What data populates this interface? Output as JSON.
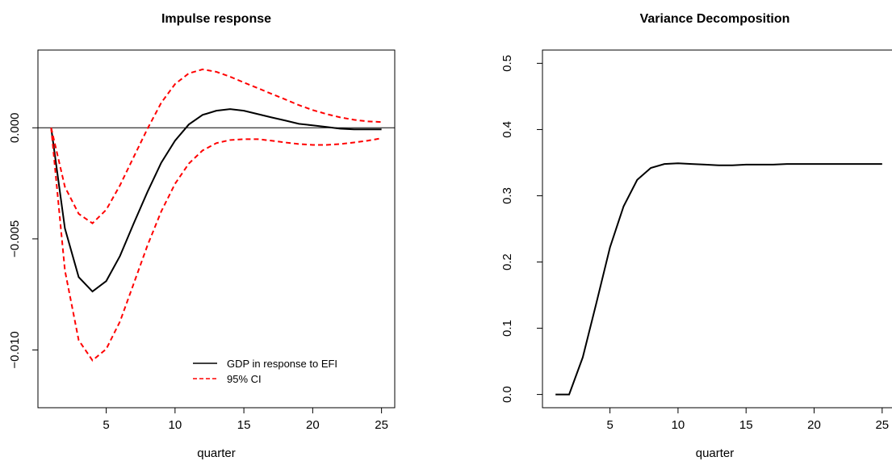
{
  "chart_data": [
    {
      "type": "line",
      "title": "Impulse response",
      "x_label": "quarter",
      "x": [
        1,
        2,
        3,
        4,
        5,
        6,
        7,
        8,
        9,
        10,
        11,
        12,
        13,
        14,
        15,
        16,
        17,
        18,
        19,
        20,
        21,
        22,
        23,
        24,
        25
      ],
      "series": [
        {
          "name": "GDP in response to EFI",
          "color": "#000000",
          "linestyle": "solid",
          "values": [
            0,
            -0.00453,
            -0.00672,
            -0.00737,
            -0.0069,
            -0.00577,
            -0.0043,
            -0.00288,
            -0.00157,
            -0.00058,
            0.00015,
            0.00058,
            0.00077,
            0.00084,
            0.00077,
            0.00062,
            0.00047,
            0.00033,
            0.00018,
            0.00011,
            4e-05,
            -4e-05,
            -7e-05,
            -7e-05,
            -7e-05
          ]
        },
        {
          "name": "95% CI",
          "color": "#ff0000",
          "linestyle": "dashed",
          "values": [
            0,
            -0.00266,
            -0.00387,
            -0.0043,
            -0.00369,
            -0.00259,
            -0.00131,
            -4e-05,
            0.00113,
            0.00197,
            0.00245,
            0.00263,
            0.00252,
            0.0023,
            0.00204,
            0.00179,
            0.00153,
            0.00128,
            0.00102,
            0.0008,
            0.00062,
            0.00047,
            0.00036,
            0.00029,
            0.00026
          ]
        },
        {
          "color": "#ff0000",
          "linestyle": "dashed",
          "values": [
            0,
            -0.00642,
            -0.00956,
            -0.01047,
            -0.00996,
            -0.00872,
            -0.00701,
            -0.00529,
            -0.00376,
            -0.00252,
            -0.00161,
            -0.00102,
            -0.00069,
            -0.00055,
            -0.00051,
            -0.00051,
            -0.00058,
            -0.00066,
            -0.00073,
            -0.00077,
            -0.00077,
            -0.00073,
            -0.00066,
            -0.00058,
            -0.00047
          ]
        }
      ],
      "reference_line": 0,
      "xlim": [
        0.04,
        25.96
      ],
      "xticks": [
        5,
        10,
        15,
        20,
        25
      ],
      "ylim": [
        -0.0126,
        0.0035
      ],
      "yticks": [
        {
          "value": 0,
          "label": "0.000"
        },
        {
          "value": -0.005,
          "label": "−0.005"
        },
        {
          "value": -0.01,
          "label": "−0.010"
        }
      ],
      "legend": "bottom-right"
    },
    {
      "type": "line",
      "title": "Variance Decomposition",
      "x_label": "quarter",
      "x": [
        1,
        2,
        3,
        4,
        5,
        6,
        7,
        8,
        9,
        10,
        11,
        12,
        13,
        14,
        15,
        16,
        17,
        18,
        19,
        20,
        21,
        22,
        23,
        24,
        25
      ],
      "series": [
        {
          "color": "#000000",
          "linestyle": "solid",
          "values": [
            0,
            0,
            0.056,
            0.138,
            0.222,
            0.284,
            0.324,
            0.342,
            0.348,
            0.349,
            0.348,
            0.347,
            0.346,
            0.346,
            0.347,
            0.347,
            0.347,
            0.348,
            0.348,
            0.348,
            0.348,
            0.348,
            0.348,
            0.348,
            0.348
          ]
        }
      ],
      "xlim": [
        0.04,
        25.96
      ],
      "xticks": [
        5,
        10,
        15,
        20,
        25
      ],
      "ylim": [
        -0.02,
        0.52
      ],
      "yticks": [
        {
          "value": 0,
          "label": "0.0"
        },
        {
          "value": 0.1,
          "label": "0.1"
        },
        {
          "value": 0.2,
          "label": "0.2"
        },
        {
          "value": 0.3,
          "label": "0.3"
        },
        {
          "value": 0.4,
          "label": "0.4"
        },
        {
          "value": 0.5,
          "label": "0.5"
        }
      ]
    }
  ]
}
